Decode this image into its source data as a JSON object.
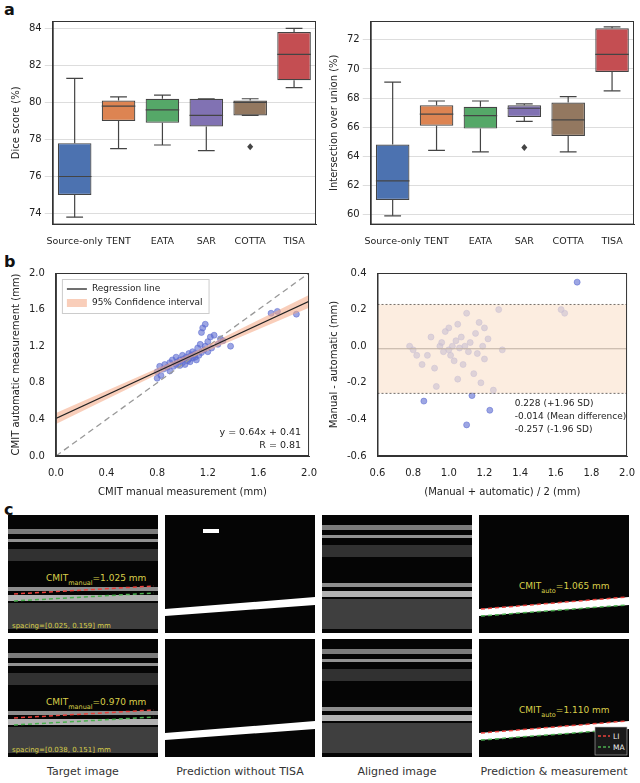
{
  "panel_labels": [
    "a",
    "b",
    "c"
  ],
  "chart_data": [
    {
      "type": "box",
      "ylabel": "Dice score (%)",
      "categories": [
        "Source-only",
        "TENT",
        "EATA",
        "SAR",
        "COTTA",
        "TISA"
      ],
      "colors": [
        "#4c72b0",
        "#dd8452",
        "#55a868",
        "#8172b3",
        "#937860",
        "#c44e52"
      ],
      "boxes": [
        {
          "low": 73.8,
          "q1": 75.0,
          "median": 76.0,
          "q3": 77.8,
          "high": 81.3,
          "outliers": []
        },
        {
          "low": 77.5,
          "q1": 79.0,
          "median": 79.8,
          "q3": 80.1,
          "high": 80.3,
          "outliers": []
        },
        {
          "low": 77.7,
          "q1": 78.9,
          "median": 79.6,
          "q3": 80.2,
          "high": 80.4,
          "outliers": []
        },
        {
          "low": 77.4,
          "q1": 78.7,
          "median": 79.3,
          "q3": 80.2,
          "high": 80.2,
          "outliers": []
        },
        {
          "low": 79.3,
          "q1": 79.3,
          "median": 80.0,
          "q3": 80.1,
          "high": 80.2,
          "outliers": [
            77.6
          ]
        },
        {
          "low": 80.8,
          "q1": 81.2,
          "median": 82.6,
          "q3": 83.8,
          "high": 84.0,
          "outliers": []
        }
      ],
      "ylim": [
        73.4,
        84.4
      ],
      "yticks": [
        74,
        76,
        78,
        80,
        82,
        84
      ],
      "grid": "y"
    },
    {
      "type": "box",
      "ylabel": "Intersection over union (%)",
      "categories": [
        "Source-only",
        "TENT",
        "EATA",
        "SAR",
        "COTTA",
        "TISA"
      ],
      "colors": [
        "#4c72b0",
        "#dd8452",
        "#55a868",
        "#8172b3",
        "#937860",
        "#c44e52"
      ],
      "boxes": [
        {
          "low": 59.9,
          "q1": 61.0,
          "median": 62.3,
          "q3": 64.8,
          "high": 69.1,
          "outliers": []
        },
        {
          "low": 64.4,
          "q1": 66.1,
          "median": 66.9,
          "q3": 67.5,
          "high": 67.8,
          "outliers": []
        },
        {
          "low": 64.3,
          "q1": 65.9,
          "median": 66.8,
          "q3": 67.4,
          "high": 67.8,
          "outliers": []
        },
        {
          "low": 66.4,
          "q1": 66.7,
          "median": 67.3,
          "q3": 67.5,
          "high": 67.6,
          "outliers": [
            64.6
          ]
        },
        {
          "low": 64.3,
          "q1": 65.4,
          "median": 66.5,
          "q3": 67.7,
          "high": 68.1,
          "outliers": []
        },
        {
          "low": 68.5,
          "q1": 69.8,
          "median": 71.0,
          "q3": 72.8,
          "high": 72.9,
          "outliers": []
        }
      ],
      "ylim": [
        59.3,
        73.3
      ],
      "yticks": [
        60,
        62,
        64,
        66,
        68,
        70,
        72
      ],
      "grid": "y"
    },
    {
      "type": "scatter",
      "xlabel": "CMIT manual measurement (mm)",
      "ylabel": "CMIT automatic measurement (mm)",
      "xlim": [
        0,
        2
      ],
      "ylim": [
        0,
        2
      ],
      "xticks": [
        {
          "value": 0,
          "label": "0.0"
        },
        0.4,
        0.8,
        1.2,
        1.6,
        {
          "value": 2,
          "label": "2.0"
        }
      ],
      "yticks": [
        {
          "value": 0,
          "label": "0.0"
        },
        0.4,
        0.8,
        1.2,
        1.6,
        {
          "value": 2,
          "label": "2.0"
        }
      ],
      "legend": "upper left",
      "annotations": [
        "y = 0.64x + 0.41",
        "R = 0.81"
      ],
      "series": [
        {
          "name": "Regression line",
          "type": "line",
          "line_style": "solid",
          "color": "#222222",
          "x": [
            0,
            1.05,
            2
          ],
          "values": [
            0.41,
            1.082,
            1.69
          ]
        },
        {
          "name": "95% Confidence interval",
          "type": "band",
          "color": "#f4a582",
          "x": [
            0,
            1.05,
            2
          ],
          "lower": [
            0.35,
            1.06,
            1.62
          ],
          "upper": [
            0.47,
            1.11,
            1.76
          ]
        },
        {
          "type": "line",
          "line_style": "dashed",
          "color": "#999999",
          "x": [
            0,
            2
          ],
          "values": [
            0,
            2
          ]
        },
        {
          "type": "scatter",
          "marker": "circle",
          "color": "#5b6bd0",
          "x": [
            0.8,
            0.8,
            0.82,
            0.83,
            0.85,
            0.86,
            0.88,
            0.9,
            0.9,
            0.92,
            0.93,
            0.95,
            0.95,
            0.96,
            0.98,
            0.98,
            1.0,
            1.0,
            1.01,
            1.02,
            1.03,
            1.04,
            1.05,
            1.05,
            1.06,
            1.07,
            1.08,
            1.08,
            1.1,
            1.1,
            1.11,
            1.12,
            1.13,
            1.14,
            1.15,
            1.15,
            1.16,
            1.17,
            1.18,
            1.18,
            1.2,
            1.2,
            1.22,
            1.23,
            1.25,
            1.28,
            1.3,
            1.32,
            1.38,
            1.7,
            1.75,
            1.9
          ],
          "values": [
            0.85,
            0.92,
            0.98,
            0.88,
            0.95,
            1.0,
            0.97,
            1.02,
            0.93,
            1.05,
            0.98,
            1.0,
            1.08,
            1.03,
            1.05,
            0.99,
            1.02,
            1.1,
            1.06,
            1.0,
            1.08,
            1.04,
            1.12,
            1.06,
            1.03,
            1.1,
            1.14,
            1.07,
            1.08,
            1.12,
            1.05,
            1.18,
            1.1,
            1.22,
            1.13,
            1.35,
            1.4,
            1.16,
            1.2,
            1.44,
            1.25,
            1.14,
            1.3,
            1.18,
            1.32,
            1.22,
            1.28,
            1.26,
            1.2,
            1.56,
            1.58,
            1.55
          ]
        }
      ]
    },
    {
      "type": "scatter",
      "xlabel": "(Manual + automatic) / 2 (mm)",
      "ylabel": "Manual - automatic (mm)",
      "xlim": [
        0.6,
        2.0
      ],
      "ylim": [
        -0.6,
        0.4
      ],
      "xticks": [
        0.6,
        0.8,
        {
          "value": 1,
          "label": "1.0"
        },
        1.2,
        1.4,
        1.6,
        1.8,
        {
          "value": 2,
          "label": "2.0"
        }
      ],
      "yticks": [
        -0.6,
        -0.4,
        -0.2,
        {
          "value": 0,
          "label": "0.0"
        },
        0.2,
        0.4
      ],
      "marker": "circle",
      "color": "#5b6bd0",
      "band_color": "#fbe5d3",
      "x": [
        0.78,
        0.8,
        0.82,
        0.85,
        0.86,
        0.88,
        0.9,
        0.92,
        0.93,
        0.95,
        0.96,
        0.97,
        0.98,
        1.0,
        1.0,
        1.01,
        1.02,
        1.03,
        1.04,
        1.05,
        1.05,
        1.06,
        1.07,
        1.08,
        1.09,
        1.1,
        1.1,
        1.11,
        1.12,
        1.13,
        1.14,
        1.15,
        1.16,
        1.17,
        1.18,
        1.19,
        1.2,
        1.2,
        1.22,
        1.23,
        1.25,
        1.28,
        1.3,
        1.63,
        1.65,
        1.72
      ],
      "values": [
        0.0,
        -0.02,
        -0.05,
        -0.1,
        -0.3,
        -0.05,
        0.05,
        -0.12,
        -0.22,
        0.0,
        0.02,
        -0.03,
        0.08,
        -0.02,
        0.1,
        -0.05,
        0.0,
        -0.08,
        0.03,
        -0.18,
        0.12,
        -0.01,
        0.05,
        -0.1,
        0.0,
        -0.43,
        0.18,
        -0.03,
        0.02,
        -0.27,
        -0.15,
        0.07,
        -0.04,
        0.13,
        -0.2,
        0.0,
        0.1,
        -0.07,
        0.04,
        -0.35,
        -0.24,
        0.2,
        -0.02,
        0.2,
        0.18,
        0.35
      ],
      "hlines": [
        {
          "value": 0.228,
          "label": "0.228 (+1.96 SD)",
          "line_style": "dotted",
          "color": "#333333"
        },
        {
          "value": -0.014,
          "label": "-0.014 (Mean difference)",
          "line_style": "solid",
          "color": "#333333"
        },
        {
          "value": -0.257,
          "label": "-0.257 (-1.96 SD)",
          "line_style": "dotted",
          "color": "#333333"
        }
      ]
    }
  ],
  "image_panel": {
    "columns": [
      "Target image",
      "Prediction without TISA",
      "Aligned image",
      "Prediction & measurement"
    ],
    "rows": [
      {
        "manual": {
          "name": "CMIT",
          "subscript": "manual",
          "text": "=1.025 mm"
        },
        "spacing": "spacing=[0.025, 0.159] mm",
        "auto": {
          "name": "CMIT",
          "subscript": "auto",
          "text": "=1.065 mm"
        }
      },
      {
        "manual": {
          "name": "CMIT",
          "subscript": "manual",
          "text": "=0.970 mm"
        },
        "spacing": "spacing=[0.038, 0.151] mm",
        "auto": {
          "name": "CMIT",
          "subscript": "auto",
          "text": "=1.110 mm"
        }
      }
    ],
    "legend": [
      {
        "name": "LI",
        "color": "#e8413c",
        "line_style": "dashed"
      },
      {
        "name": "MA",
        "color": "#4caf50",
        "line_style": "dashed"
      }
    ]
  }
}
